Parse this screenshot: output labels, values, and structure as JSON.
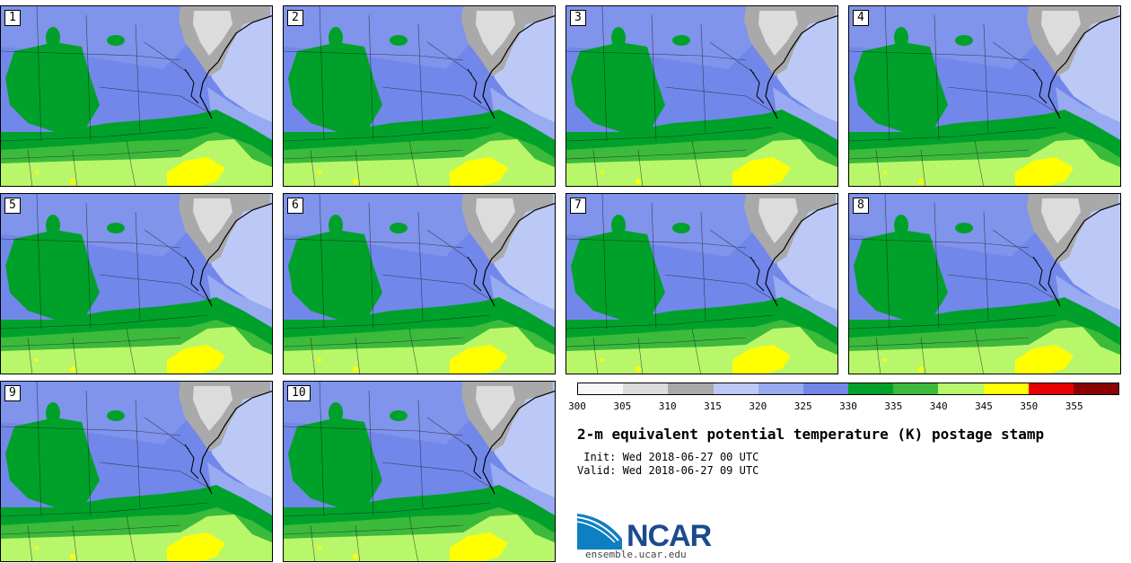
{
  "map": {
    "title": "2-m equivalent potential temperature (K) postage stamp",
    "init": " Init: Wed 2018-06-27 00 UTC",
    "valid": "Valid: Wed 2018-06-27 09 UTC",
    "members": [
      "1",
      "2",
      "3",
      "4",
      "5",
      "6",
      "7",
      "8",
      "9",
      "10"
    ]
  },
  "colorbar": {
    "ticks": [
      "300",
      "305",
      "310",
      "315",
      "320",
      "325",
      "330",
      "335",
      "340",
      "345",
      "350",
      "355"
    ],
    "colors": [
      "#f7f7f7",
      "#dcdcdc",
      "#a9a9a9",
      "#bcc9f7",
      "#97aaf2",
      "#7287ea",
      "#00a12a",
      "#3cba3c",
      "#b9f76a",
      "#ffff00",
      "#e60000",
      "#8b0000"
    ]
  },
  "branding": {
    "logo": "NCAR",
    "site": "ensemble.ucar.edu"
  }
}
